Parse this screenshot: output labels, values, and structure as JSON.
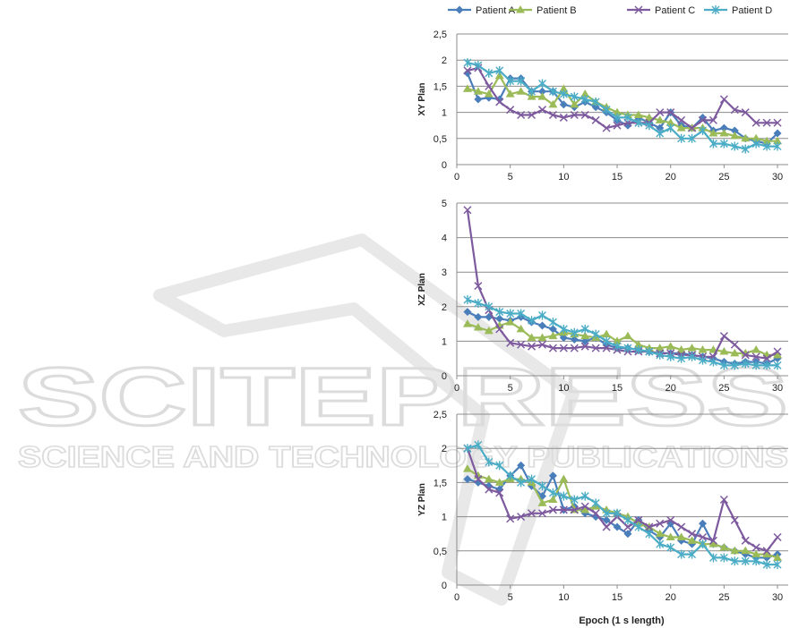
{
  "watermark": {
    "big": "SCITEPRESS",
    "small": "SCIENCE AND TECHNOLOGY PUBLICATIONS"
  },
  "colors": {
    "Patient A": "#4a7ebb",
    "Patient B": "#9bbb59",
    "Patient C": "#7d5a9e",
    "Patient D": "#4bacc6"
  },
  "legend": [
    "Patient A",
    "Patient B",
    "Patient C",
    "Patient D"
  ],
  "x_axis_label": "Epoch (1 s length)",
  "chart_data": [
    {
      "type": "line",
      "ylabel": "XY Plan",
      "ylim": [
        0,
        2.5
      ],
      "yticks": [
        "0",
        "0,5",
        "1",
        "1,5",
        "2",
        "2,5"
      ],
      "xlim": [
        0,
        31
      ],
      "xticks": [
        0,
        5,
        10,
        15,
        20,
        25,
        30
      ],
      "x": [
        1,
        2,
        3,
        4,
        5,
        6,
        7,
        8,
        9,
        10,
        11,
        12,
        13,
        14,
        15,
        16,
        17,
        18,
        19,
        20,
        21,
        22,
        23,
        24,
        25,
        26,
        27,
        28,
        29,
        30
      ],
      "series": [
        {
          "name": "Patient A",
          "marker": "diamond",
          "values": [
            1.75,
            1.25,
            1.28,
            1.25,
            1.65,
            1.65,
            1.4,
            1.4,
            1.4,
            1.15,
            1.1,
            1.2,
            1.1,
            1.0,
            0.85,
            0.75,
            0.9,
            0.8,
            0.7,
            1.0,
            0.75,
            0.7,
            0.9,
            0.65,
            0.7,
            0.65,
            0.5,
            0.45,
            0.4,
            0.6
          ]
        },
        {
          "name": "Patient B",
          "marker": "triangle",
          "values": [
            1.45,
            1.4,
            1.35,
            1.7,
            1.35,
            1.4,
            1.3,
            1.3,
            1.15,
            1.45,
            1.15,
            1.35,
            1.2,
            1.1,
            1.0,
            0.95,
            0.95,
            0.9,
            0.85,
            0.8,
            0.7,
            0.7,
            0.7,
            0.6,
            0.6,
            0.55,
            0.5,
            0.5,
            0.45,
            0.45
          ]
        },
        {
          "name": "Patient C",
          "marker": "x",
          "values": [
            1.8,
            1.85,
            1.5,
            1.2,
            1.05,
            0.95,
            0.95,
            1.05,
            0.95,
            0.9,
            0.95,
            0.95,
            0.85,
            0.7,
            0.75,
            0.8,
            0.8,
            0.8,
            1.0,
            1.0,
            0.85,
            0.7,
            0.85,
            0.85,
            1.25,
            1.05,
            1.0,
            0.8,
            0.8,
            0.8
          ]
        },
        {
          "name": "Patient D",
          "marker": "star",
          "values": [
            1.95,
            1.9,
            1.75,
            1.8,
            1.6,
            1.6,
            1.4,
            1.55,
            1.4,
            1.35,
            1.3,
            1.25,
            1.2,
            1.05,
            0.9,
            0.9,
            0.8,
            0.75,
            0.6,
            0.7,
            0.5,
            0.5,
            0.65,
            0.4,
            0.4,
            0.35,
            0.3,
            0.4,
            0.35,
            0.35
          ]
        }
      ]
    },
    {
      "type": "line",
      "ylabel": "XZ Plan",
      "ylim": [
        0,
        5
      ],
      "yticks": [
        "0",
        "1",
        "2",
        "3",
        "4",
        "5"
      ],
      "xlim": [
        0,
        31
      ],
      "xticks": [
        0,
        5,
        10,
        15,
        20,
        25,
        30
      ],
      "x": [
        1,
        2,
        3,
        4,
        5,
        6,
        7,
        8,
        9,
        10,
        11,
        12,
        13,
        14,
        15,
        16,
        17,
        18,
        19,
        20,
        21,
        22,
        23,
        24,
        25,
        26,
        27,
        28,
        29,
        30
      ],
      "series": [
        {
          "name": "Patient A",
          "marker": "diamond",
          "values": [
            1.85,
            1.7,
            1.7,
            1.65,
            1.6,
            1.7,
            1.55,
            1.45,
            1.35,
            1.1,
            1.05,
            1.0,
            1.1,
            0.9,
            0.8,
            0.8,
            0.75,
            0.7,
            0.65,
            0.65,
            0.65,
            0.6,
            0.55,
            0.5,
            0.4,
            0.35,
            0.4,
            0.4,
            0.35,
            0.5
          ]
        },
        {
          "name": "Patient B",
          "marker": "triangle",
          "values": [
            1.5,
            1.4,
            1.3,
            1.45,
            1.55,
            1.35,
            1.1,
            1.1,
            1.15,
            1.25,
            1.2,
            1.15,
            1.1,
            1.2,
            1.0,
            1.15,
            0.9,
            0.8,
            0.8,
            0.85,
            0.75,
            0.8,
            0.75,
            0.75,
            0.7,
            0.65,
            0.65,
            0.75,
            0.6,
            0.6
          ]
        },
        {
          "name": "Patient C",
          "marker": "x",
          "values": [
            4.8,
            2.6,
            1.9,
            1.35,
            0.95,
            0.9,
            0.85,
            0.9,
            0.8,
            0.8,
            0.8,
            0.85,
            0.8,
            0.8,
            0.75,
            0.7,
            0.7,
            0.7,
            0.65,
            0.65,
            0.6,
            0.6,
            0.55,
            0.55,
            1.15,
            0.9,
            0.6,
            0.55,
            0.5,
            0.7
          ]
        },
        {
          "name": "Patient D",
          "marker": "star",
          "values": [
            2.2,
            2.1,
            2.0,
            1.85,
            1.8,
            1.8,
            1.6,
            1.75,
            1.55,
            1.35,
            1.25,
            1.35,
            1.2,
            1.0,
            0.85,
            0.8,
            0.75,
            0.7,
            0.6,
            0.55,
            0.5,
            0.55,
            0.45,
            0.4,
            0.3,
            0.3,
            0.35,
            0.3,
            0.3,
            0.3
          ]
        }
      ]
    },
    {
      "type": "line",
      "ylabel": "YZ Plan",
      "ylim": [
        0,
        2.5
      ],
      "yticks": [
        "0",
        "0,5",
        "1",
        "1,5",
        "2",
        "2,5"
      ],
      "xlim": [
        0,
        31
      ],
      "xticks": [
        0,
        5,
        10,
        15,
        20,
        25,
        30
      ],
      "x": [
        1,
        2,
        3,
        4,
        5,
        6,
        7,
        8,
        9,
        10,
        11,
        12,
        13,
        14,
        15,
        16,
        17,
        18,
        19,
        20,
        21,
        22,
        23,
        24,
        25,
        26,
        27,
        28,
        29,
        30
      ],
      "series": [
        {
          "name": "Patient A",
          "marker": "diamond",
          "values": [
            1.55,
            1.5,
            1.45,
            1.4,
            1.6,
            1.75,
            1.45,
            1.3,
            1.6,
            1.1,
            1.15,
            1.05,
            1.0,
            0.95,
            0.85,
            0.75,
            0.95,
            0.8,
            0.7,
            0.9,
            0.65,
            0.6,
            0.9,
            0.6,
            0.55,
            0.5,
            0.45,
            0.4,
            0.4,
            0.45
          ]
        },
        {
          "name": "Patient B",
          "marker": "triangle",
          "values": [
            1.7,
            1.6,
            1.55,
            1.5,
            1.55,
            1.55,
            1.5,
            1.2,
            1.25,
            1.55,
            1.1,
            1.1,
            1.15,
            1.1,
            1.05,
            1.0,
            0.9,
            0.85,
            0.75,
            0.7,
            0.7,
            0.65,
            0.6,
            0.6,
            0.55,
            0.5,
            0.5,
            0.45,
            0.45,
            0.4
          ]
        },
        {
          "name": "Patient C",
          "marker": "x",
          "values": [
            2.0,
            1.55,
            1.4,
            1.35,
            0.97,
            1.0,
            1.05,
            1.05,
            1.1,
            1.1,
            1.1,
            1.15,
            1.05,
            0.85,
            1.0,
            0.85,
            0.95,
            0.85,
            0.9,
            0.95,
            0.85,
            0.75,
            0.7,
            0.65,
            1.25,
            0.95,
            0.65,
            0.55,
            0.5,
            0.7
          ]
        },
        {
          "name": "Patient D",
          "marker": "star",
          "values": [
            2.0,
            2.05,
            1.8,
            1.75,
            1.6,
            1.5,
            1.55,
            1.45,
            1.35,
            1.3,
            1.25,
            1.3,
            1.2,
            1.05,
            1.05,
            0.95,
            0.85,
            0.75,
            0.6,
            0.55,
            0.45,
            0.45,
            0.6,
            0.4,
            0.4,
            0.35,
            0.35,
            0.35,
            0.3,
            0.3
          ]
        }
      ]
    }
  ]
}
